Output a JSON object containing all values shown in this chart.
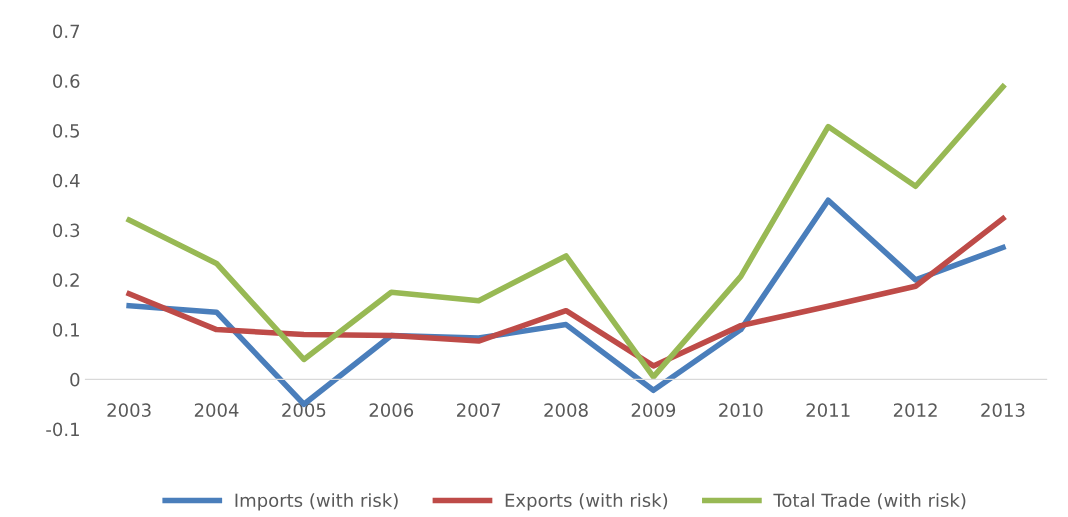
{
  "chart_data": {
    "type": "line",
    "categories": [
      "2003",
      "2004",
      "2005",
      "2006",
      "2007",
      "2008",
      "2009",
      "2010",
      "2011",
      "2012",
      "2013"
    ],
    "series": [
      {
        "name": "Imports (with risk)",
        "color": "#4a7ebb",
        "values": [
          0.148,
          0.135,
          -0.05,
          0.088,
          0.083,
          0.11,
          -0.022,
          0.1,
          0.36,
          0.2,
          0.265
        ]
      },
      {
        "name": "Exports (with risk)",
        "color": "#be4b48",
        "values": [
          0.172,
          0.1,
          0.09,
          0.088,
          0.077,
          0.138,
          0.027,
          0.108,
          0.147,
          0.187,
          0.323
        ]
      },
      {
        "name": "Total Trade (with risk)",
        "color": "#98b954",
        "values": [
          0.32,
          0.233,
          0.04,
          0.175,
          0.158,
          0.248,
          0.005,
          0.207,
          0.508,
          0.388,
          0.588
        ]
      }
    ],
    "ylim": [
      -0.1,
      0.7
    ],
    "yticks": [
      -0.1,
      0,
      0.1,
      0.2,
      0.3,
      0.4,
      0.5,
      0.6,
      0.7
    ],
    "grid": false,
    "legend": "bottom",
    "marker": "none",
    "line_style": "solid"
  }
}
